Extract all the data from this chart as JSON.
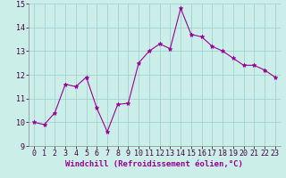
{
  "x": [
    0,
    1,
    2,
    3,
    4,
    5,
    6,
    7,
    8,
    9,
    10,
    11,
    12,
    13,
    14,
    15,
    16,
    17,
    18,
    19,
    20,
    21,
    22,
    23
  ],
  "y": [
    10.0,
    9.9,
    10.4,
    11.6,
    11.5,
    11.9,
    10.6,
    9.6,
    10.75,
    10.8,
    12.5,
    13.0,
    13.3,
    13.1,
    14.8,
    13.7,
    13.6,
    13.2,
    13.0,
    12.7,
    12.4,
    12.4,
    12.2,
    11.9
  ],
  "xlim": [
    -0.5,
    23.5
  ],
  "ylim": [
    9,
    15
  ],
  "yticks": [
    9,
    10,
    11,
    12,
    13,
    14,
    15
  ],
  "xticks": [
    0,
    1,
    2,
    3,
    4,
    5,
    6,
    7,
    8,
    9,
    10,
    11,
    12,
    13,
    14,
    15,
    16,
    17,
    18,
    19,
    20,
    21,
    22,
    23
  ],
  "xlabel": "Windchill (Refroidissement éolien,°C)",
  "line_color": "#990099",
  "marker": "*",
  "bg_color": "#cceee8",
  "grid_color": "#99cccc",
  "xlabel_fontsize": 6.5,
  "tick_fontsize": 6.0
}
